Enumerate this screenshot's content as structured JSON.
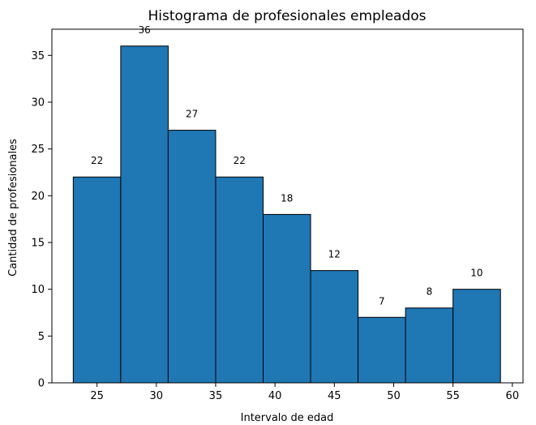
{
  "chart_data": {
    "type": "bar",
    "title": "Histograma de profesionales empleados",
    "xlabel": "Intervalo de edad",
    "ylabel": "Cantidad de profesionales",
    "bins": [
      {
        "start": 23.0,
        "end": 27.0,
        "value": 22
      },
      {
        "start": 27.0,
        "end": 31.0,
        "value": 36
      },
      {
        "start": 31.0,
        "end": 35.0,
        "value": 27
      },
      {
        "start": 35.0,
        "end": 39.0,
        "value": 22
      },
      {
        "start": 39.0,
        "end": 43.0,
        "value": 18
      },
      {
        "start": 43.0,
        "end": 47.0,
        "value": 12
      },
      {
        "start": 47.0,
        "end": 51.0,
        "value": 7
      },
      {
        "start": 51.0,
        "end": 55.0,
        "value": 8
      },
      {
        "start": 55.0,
        "end": 59.0,
        "value": 10
      }
    ],
    "data_labels": [
      "22",
      "36",
      "27",
      "22",
      "18",
      "12",
      "7",
      "8",
      "10"
    ],
    "xlim": [
      21.2,
      60.9
    ],
    "ylim": [
      0,
      37.8
    ],
    "xticks": [
      25,
      30,
      35,
      40,
      45,
      50,
      55,
      60
    ],
    "xtick_labels": [
      "25",
      "30",
      "35",
      "40",
      "45",
      "50",
      "55",
      "60"
    ],
    "yticks": [
      0,
      5,
      10,
      15,
      20,
      25,
      30,
      35
    ],
    "ytick_labels": [
      "0",
      "5",
      "10",
      "15",
      "20",
      "25",
      "30",
      "35"
    ],
    "grid": false,
    "colors": {
      "bar_fill": "#1f77b4",
      "bar_edge": "#000000",
      "axes": "#000000"
    }
  }
}
